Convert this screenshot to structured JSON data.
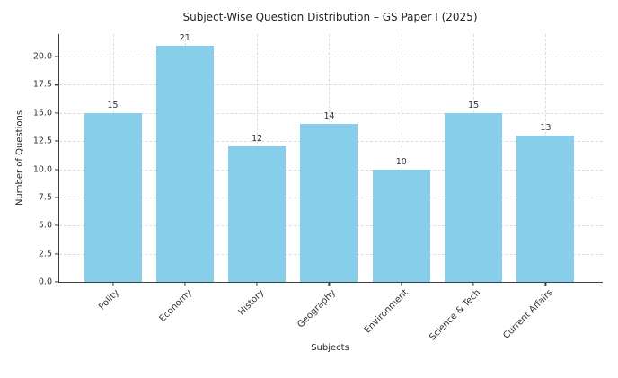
{
  "chart_data": {
    "type": "bar",
    "title": "Subject-Wise Question Distribution – GS Paper I (2025)",
    "xlabel": "Subjects",
    "ylabel": "Number of Questions",
    "categories": [
      "Polity",
      "Economy",
      "History",
      "Geography",
      "Environment",
      "Science & Tech",
      "Current Affairs"
    ],
    "values": [
      15,
      21,
      12,
      14,
      10,
      15,
      13
    ],
    "yticks": [
      0,
      2.5,
      5,
      7.5,
      10,
      12.5,
      15,
      17.5,
      20
    ],
    "ylim": [
      0,
      22
    ],
    "value_labels": true,
    "grid": true,
    "grid_style": "dashed",
    "x_tick_rotation_deg": 45,
    "legend": "none",
    "colors": {
      "bar": "#87CEEB",
      "grid": "#dcdcdc",
      "spine": "#3f3f3f",
      "text": "#262626",
      "background": "#ffffff"
    }
  }
}
